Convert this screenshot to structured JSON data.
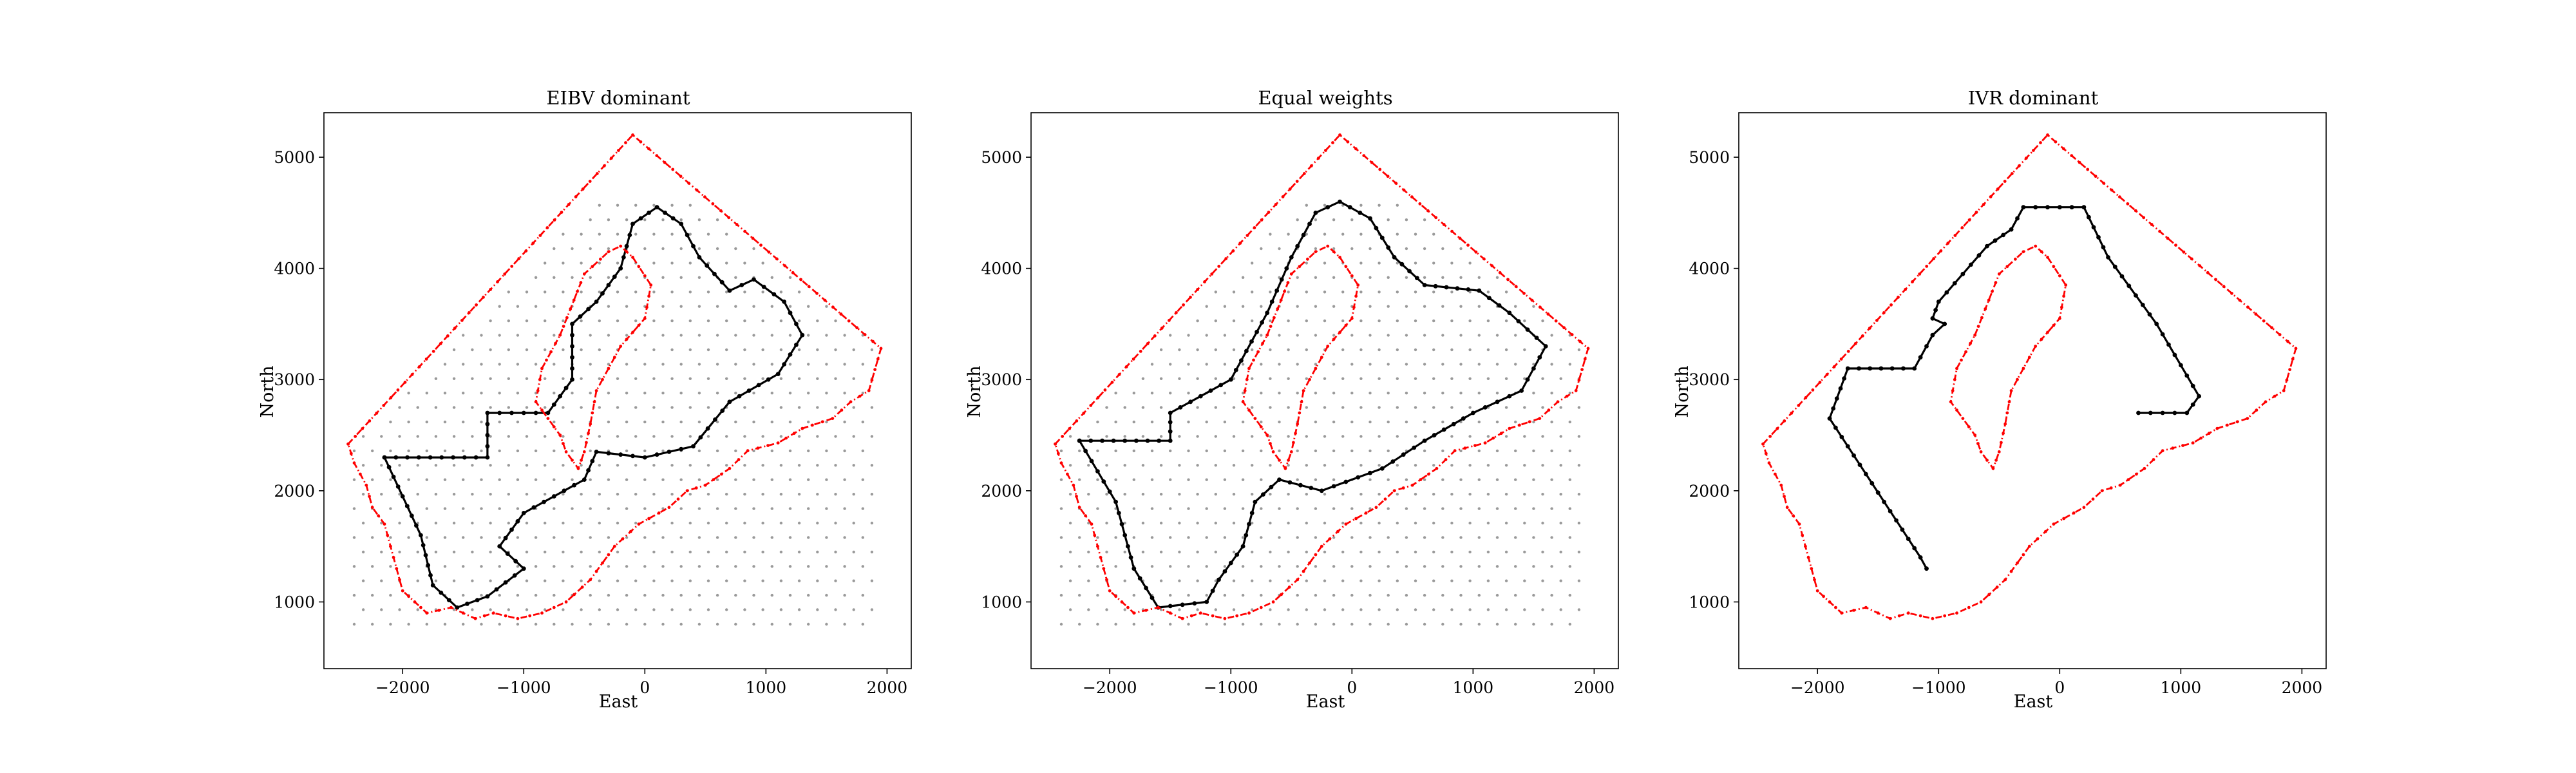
{
  "figure": {
    "background": "#ffffff"
  },
  "colors": {
    "boundary": "#ff0000",
    "path": "#000000",
    "candidate": "#9a9a9a",
    "frame": "#000000"
  },
  "chart_data": [
    {
      "type": "line",
      "title": "EIBV dominant",
      "xlabel": "East",
      "ylabel": "North",
      "xlim": [
        -2650,
        2200
      ],
      "ylim": [
        400,
        5400
      ],
      "xticks": [
        -2000,
        -1000,
        0,
        1000,
        2000
      ],
      "yticks": [
        1000,
        2000,
        3000,
        4000,
        5000
      ],
      "x_tick_labels": [
        "−2000",
        "−1000",
        "0",
        "1000",
        "2000"
      ],
      "y_tick_labels": [
        "1000",
        "2000",
        "3000",
        "4000",
        "5000"
      ],
      "grid": false,
      "legend": "none",
      "outer_boundary": [
        [
          -2450,
          2420
        ],
        [
          -100,
          5200
        ],
        [
          1950,
          3280
        ],
        [
          1850,
          2900
        ],
        [
          1700,
          2800
        ],
        [
          1550,
          2650
        ],
        [
          1300,
          2560
        ],
        [
          1100,
          2430
        ],
        [
          850,
          2360
        ],
        [
          700,
          2200
        ],
        [
          500,
          2050
        ],
        [
          350,
          2000
        ],
        [
          200,
          1850
        ],
        [
          -50,
          1700
        ],
        [
          -250,
          1500
        ],
        [
          -450,
          1200
        ],
        [
          -650,
          1000
        ],
        [
          -850,
          900
        ],
        [
          -1050,
          850
        ],
        [
          -1250,
          900
        ],
        [
          -1400,
          850
        ],
        [
          -1600,
          950
        ],
        [
          -1800,
          900
        ],
        [
          -1900,
          1000
        ],
        [
          -2000,
          1100
        ],
        [
          -2050,
          1300
        ],
        [
          -2100,
          1500
        ],
        [
          -2150,
          1700
        ],
        [
          -2250,
          1850
        ],
        [
          -2300,
          2050
        ],
        [
          -2400,
          2250
        ],
        [
          -2450,
          2420
        ]
      ],
      "inner_boundary": [
        [
          -700,
          3400
        ],
        [
          -500,
          3950
        ],
        [
          -300,
          4150
        ],
        [
          -200,
          4200
        ],
        [
          -100,
          4100
        ],
        [
          50,
          3850
        ],
        [
          0,
          3550
        ],
        [
          -200,
          3300
        ],
        [
          -300,
          3100
        ],
        [
          -400,
          2900
        ],
        [
          -450,
          2600
        ],
        [
          -500,
          2350
        ],
        [
          -550,
          2200
        ],
        [
          -650,
          2350
        ],
        [
          -700,
          2500
        ],
        [
          -900,
          2800
        ],
        [
          -850,
          3100
        ],
        [
          -700,
          3400
        ]
      ],
      "path": [
        [
          -2150,
          2300
        ],
        [
          -1300,
          2300
        ],
        [
          -1300,
          2700
        ],
        [
          -800,
          2700
        ],
        [
          -600,
          3000
        ],
        [
          -600,
          3500
        ],
        [
          -400,
          3700
        ],
        [
          -200,
          4000
        ],
        [
          -100,
          4400
        ],
        [
          100,
          4550
        ],
        [
          300,
          4400
        ],
        [
          450,
          4100
        ],
        [
          700,
          3800
        ],
        [
          900,
          3900
        ],
        [
          1150,
          3700
        ],
        [
          1300,
          3400
        ],
        [
          1100,
          3050
        ],
        [
          700,
          2800
        ],
        [
          400,
          2400
        ],
        [
          0,
          2300
        ],
        [
          -400,
          2350
        ],
        [
          -500,
          2100
        ],
        [
          -1000,
          1800
        ],
        [
          -1200,
          1500
        ],
        [
          -1000,
          1300
        ],
        [
          -1300,
          1050
        ],
        [
          -1550,
          950
        ],
        [
          -1750,
          1150
        ],
        [
          -1850,
          1600
        ],
        [
          -2150,
          2300
        ]
      ]
    },
    {
      "type": "line",
      "title": "Equal weights",
      "xlabel": "East",
      "ylabel": "North",
      "xlim": [
        -2650,
        2200
      ],
      "ylim": [
        400,
        5400
      ],
      "xticks": [
        -2000,
        -1000,
        0,
        1000,
        2000
      ],
      "yticks": [
        1000,
        2000,
        3000,
        4000,
        5000
      ],
      "x_tick_labels": [
        "−2000",
        "−1000",
        "0",
        "1000",
        "2000"
      ],
      "y_tick_labels": [
        "1000",
        "2000",
        "3000",
        "4000",
        "5000"
      ],
      "grid": false,
      "legend": "none",
      "outer_boundary": [
        [
          -2450,
          2420
        ],
        [
          -100,
          5200
        ],
        [
          1950,
          3280
        ],
        [
          1850,
          2900
        ],
        [
          1700,
          2800
        ],
        [
          1550,
          2650
        ],
        [
          1300,
          2560
        ],
        [
          1100,
          2430
        ],
        [
          850,
          2360
        ],
        [
          700,
          2200
        ],
        [
          500,
          2050
        ],
        [
          350,
          2000
        ],
        [
          200,
          1850
        ],
        [
          -50,
          1700
        ],
        [
          -250,
          1500
        ],
        [
          -450,
          1200
        ],
        [
          -650,
          1000
        ],
        [
          -850,
          900
        ],
        [
          -1050,
          850
        ],
        [
          -1250,
          900
        ],
        [
          -1400,
          850
        ],
        [
          -1600,
          950
        ],
        [
          -1800,
          900
        ],
        [
          -1900,
          1000
        ],
        [
          -2000,
          1100
        ],
        [
          -2050,
          1300
        ],
        [
          -2100,
          1500
        ],
        [
          -2150,
          1700
        ],
        [
          -2250,
          1850
        ],
        [
          -2300,
          2050
        ],
        [
          -2400,
          2250
        ],
        [
          -2450,
          2420
        ]
      ],
      "inner_boundary": [
        [
          -700,
          3400
        ],
        [
          -500,
          3950
        ],
        [
          -300,
          4150
        ],
        [
          -200,
          4200
        ],
        [
          -100,
          4100
        ],
        [
          50,
          3850
        ],
        [
          0,
          3550
        ],
        [
          -200,
          3300
        ],
        [
          -300,
          3100
        ],
        [
          -400,
          2900
        ],
        [
          -450,
          2600
        ],
        [
          -500,
          2350
        ],
        [
          -550,
          2200
        ],
        [
          -650,
          2350
        ],
        [
          -700,
          2500
        ],
        [
          -900,
          2800
        ],
        [
          -850,
          3100
        ],
        [
          -700,
          3400
        ]
      ],
      "path": [
        [
          -2250,
          2450
        ],
        [
          -1500,
          2450
        ],
        [
          -1500,
          2700
        ],
        [
          -1000,
          3000
        ],
        [
          -700,
          3600
        ],
        [
          -500,
          4100
        ],
        [
          -300,
          4500
        ],
        [
          -100,
          4600
        ],
        [
          150,
          4450
        ],
        [
          350,
          4100
        ],
        [
          600,
          3850
        ],
        [
          1050,
          3800
        ],
        [
          1300,
          3600
        ],
        [
          1600,
          3300
        ],
        [
          1400,
          2900
        ],
        [
          1000,
          2700
        ],
        [
          600,
          2450
        ],
        [
          250,
          2200
        ],
        [
          -250,
          2000
        ],
        [
          -600,
          2100
        ],
        [
          -800,
          1900
        ],
        [
          -900,
          1500
        ],
        [
          -1100,
          1200
        ],
        [
          -1200,
          1000
        ],
        [
          -1600,
          950
        ],
        [
          -1800,
          1300
        ],
        [
          -1950,
          1900
        ],
        [
          -2250,
          2450
        ]
      ]
    },
    {
      "type": "line",
      "title": "IVR dominant",
      "xlabel": "East",
      "ylabel": "North",
      "xlim": [
        -2650,
        2200
      ],
      "ylim": [
        400,
        5400
      ],
      "xticks": [
        -2000,
        -1000,
        0,
        1000,
        2000
      ],
      "yticks": [
        1000,
        2000,
        3000,
        4000,
        5000
      ],
      "x_tick_labels": [
        "−2000",
        "−1000",
        "0",
        "1000",
        "2000"
      ],
      "y_tick_labels": [
        "1000",
        "2000",
        "3000",
        "4000",
        "5000"
      ],
      "grid": false,
      "legend": "none",
      "outer_boundary": [
        [
          -2450,
          2420
        ],
        [
          -100,
          5200
        ],
        [
          1950,
          3280
        ],
        [
          1850,
          2900
        ],
        [
          1700,
          2800
        ],
        [
          1550,
          2650
        ],
        [
          1300,
          2560
        ],
        [
          1100,
          2430
        ],
        [
          850,
          2360
        ],
        [
          700,
          2200
        ],
        [
          500,
          2050
        ],
        [
          350,
          2000
        ],
        [
          200,
          1850
        ],
        [
          -50,
          1700
        ],
        [
          -250,
          1500
        ],
        [
          -450,
          1200
        ],
        [
          -650,
          1000
        ],
        [
          -850,
          900
        ],
        [
          -1050,
          850
        ],
        [
          -1250,
          900
        ],
        [
          -1400,
          850
        ],
        [
          -1600,
          950
        ],
        [
          -1800,
          900
        ],
        [
          -1900,
          1000
        ],
        [
          -2000,
          1100
        ],
        [
          -2050,
          1300
        ],
        [
          -2100,
          1500
        ],
        [
          -2150,
          1700
        ],
        [
          -2250,
          1850
        ],
        [
          -2300,
          2050
        ],
        [
          -2400,
          2250
        ],
        [
          -2450,
          2420
        ]
      ],
      "inner_boundary": [
        [
          -700,
          3400
        ],
        [
          -500,
          3950
        ],
        [
          -300,
          4150
        ],
        [
          -200,
          4200
        ],
        [
          -100,
          4100
        ],
        [
          50,
          3850
        ],
        [
          0,
          3550
        ],
        [
          -200,
          3300
        ],
        [
          -300,
          3100
        ],
        [
          -400,
          2900
        ],
        [
          -450,
          2600
        ],
        [
          -500,
          2350
        ],
        [
          -550,
          2200
        ],
        [
          -650,
          2350
        ],
        [
          -700,
          2500
        ],
        [
          -900,
          2800
        ],
        [
          -850,
          3100
        ],
        [
          -700,
          3400
        ]
      ],
      "path": [
        [
          -1100,
          1300
        ],
        [
          -1150,
          1400
        ],
        [
          -1900,
          2650
        ],
        [
          -1750,
          3100
        ],
        [
          -1200,
          3100
        ],
        [
          -1050,
          3400
        ],
        [
          -950,
          3500
        ],
        [
          -1050,
          3550
        ],
        [
          -1000,
          3700
        ],
        [
          -600,
          4200
        ],
        [
          -400,
          4350
        ],
        [
          -300,
          4550
        ],
        [
          200,
          4550
        ],
        [
          400,
          4100
        ],
        [
          800,
          3500
        ],
        [
          1150,
          2850
        ],
        [
          1050,
          2700
        ],
        [
          650,
          2700
        ]
      ]
    }
  ]
}
